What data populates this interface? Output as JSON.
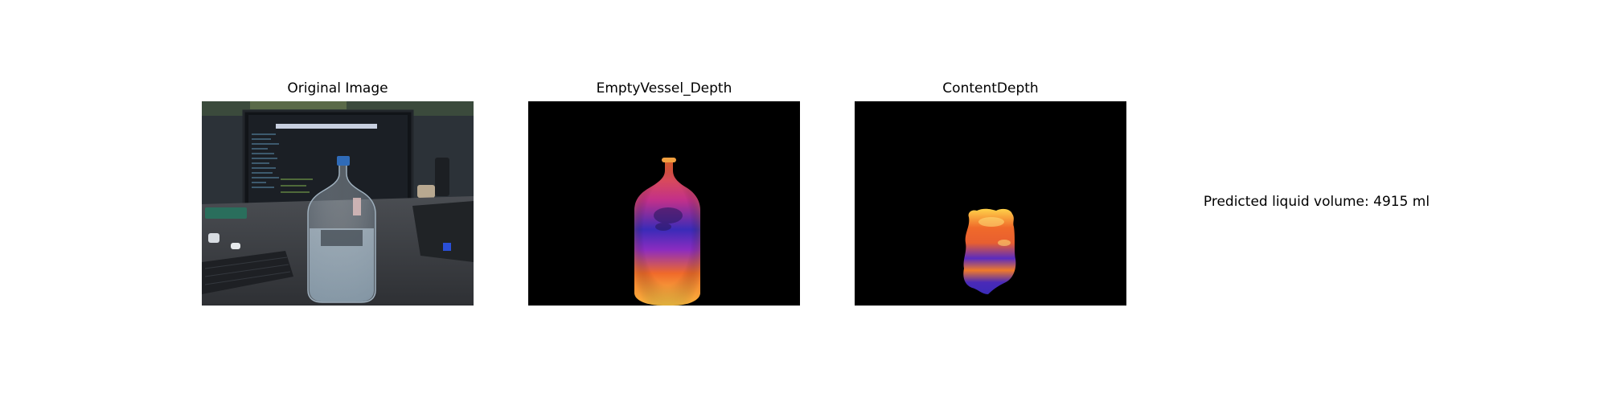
{
  "panels": {
    "original": {
      "title": "Original Image"
    },
    "empty_vessel": {
      "title": "EmptyVessel_Depth"
    },
    "content": {
      "title": "ContentDepth"
    }
  },
  "result": {
    "text": "Predicted liquid volume: 4915 ml"
  },
  "colors": {
    "depth_background": "#000000",
    "depth_high": "#ffe066",
    "depth_mid": "#f0642a",
    "depth_low": "#3a2bb8"
  }
}
